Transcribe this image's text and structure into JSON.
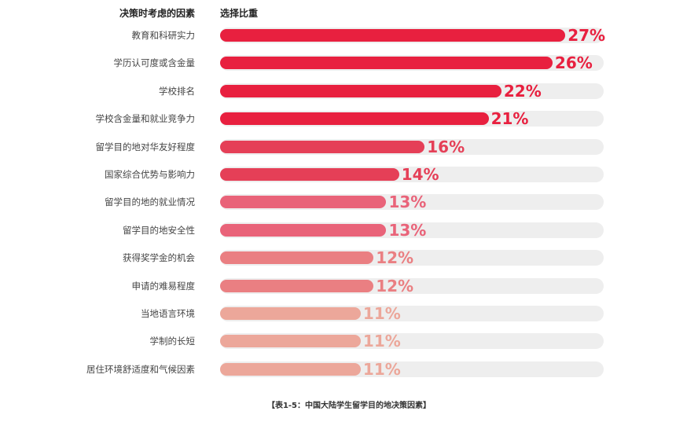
{
  "headers": {
    "factor": "决策时考虑的因素",
    "weight": "选择比重"
  },
  "caption": "【表1-5：中国大陆学生留学目的地决策因素】",
  "track_color": "#eeeeee",
  "chart_data": {
    "type": "bar",
    "orientation": "horizontal",
    "xlabel": "",
    "ylabel": "",
    "xlim": [
      0,
      30
    ],
    "categories": [
      "教育和科研实力",
      "学历认可度或含金量",
      "学校排名",
      "学校含金量和就业竞争力",
      "留学目的地对华友好程度",
      "国家综合优势与影响力",
      "留学目的地的就业情况",
      "留学目的地安全性",
      "获得奖学金的机会",
      "申请的难易程度",
      "当地语言环境",
      "学制的长短",
      "居住环境舒适度和气候因素"
    ],
    "values": [
      27,
      26,
      22,
      21,
      16,
      14,
      13,
      13,
      12,
      12,
      11,
      11,
      11
    ],
    "value_labels": [
      "27%",
      "26%",
      "22%",
      "21%",
      "16%",
      "14%",
      "13%",
      "13%",
      "12%",
      "12%",
      "11%",
      "11%",
      "11%"
    ],
    "colors": [
      "#e8203f",
      "#e8203f",
      "#e8203f",
      "#e8203f",
      "#e53f57",
      "#e53f57",
      "#e96379",
      "#e96379",
      "#ea7f82",
      "#ea7f82",
      "#eca79a",
      "#eca79a",
      "#eca79a"
    ]
  }
}
